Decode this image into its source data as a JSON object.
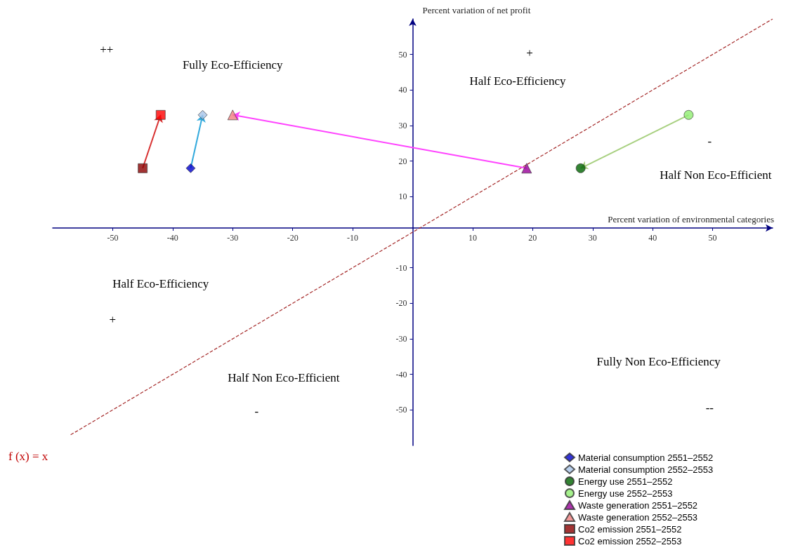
{
  "chart_data": {
    "type": "scatter",
    "xlabel": "Percent variation of environmental categories",
    "ylabel": "Percent variation of net profit",
    "xlim": [
      -60,
      60
    ],
    "ylim": [
      -60,
      60
    ],
    "xticks": [
      -50,
      -40,
      -30,
      -20,
      -10,
      10,
      20,
      30,
      40,
      50
    ],
    "yticks": [
      -50,
      -40,
      -30,
      -20,
      -10,
      10,
      20,
      30,
      40,
      50
    ],
    "grid": false,
    "legend": "bottom right",
    "series": [
      {
        "name": "Material consumption 2551–2552",
        "color": "#0000cc",
        "marker": "diamond",
        "x": [
          -37
        ],
        "values": [
          18
        ]
      },
      {
        "name": "Material consumption 2552–2553",
        "color": "#a8c4e8",
        "marker": "diamond",
        "x": [
          -35
        ],
        "values": [
          33
        ]
      },
      {
        "name": "Energy use 2551–2552",
        "color": "#006400",
        "marker": "circle",
        "x": [
          28
        ],
        "values": [
          18
        ]
      },
      {
        "name": "Energy use 2552–2553",
        "color": "#90ee70",
        "marker": "circle",
        "x": [
          46
        ],
        "values": [
          33
        ]
      },
      {
        "name": "Waste generation 2551–2552",
        "color": "#990099",
        "marker": "triangle",
        "x": [
          19
        ],
        "values": [
          18
        ]
      },
      {
        "name": "Waste generation 2552–2553",
        "color": "#f08080",
        "marker": "triangle",
        "x": [
          -30
        ],
        "values": [
          33
        ]
      },
      {
        "name": "Co2 emission 2551–2552",
        "color": "#8b0000",
        "marker": "square",
        "x": [
          -45
        ],
        "values": [
          18
        ]
      },
      {
        "name": "Co2 emission 2552–2553",
        "color": "#ff0000",
        "marker": "square",
        "x": [
          -42
        ],
        "values": [
          33
        ]
      },
      {
        "type": "line",
        "color": "#a52a2a",
        "line_style": "dashed",
        "marker": "none",
        "x": [
          -57,
          60
        ],
        "values": [
          -57,
          60
        ]
      }
    ],
    "annotations": [
      "f (x) = x",
      "Fully Eco-Efficiency",
      "++",
      "Half Eco-Efficiency",
      "+",
      "Half Non Eco-Efficient",
      "-",
      "Half Eco-Efficiency",
      "+",
      "Half Non Eco-Efficient",
      "-",
      "Fully Non Eco-Efficiency",
      "--"
    ]
  }
}
